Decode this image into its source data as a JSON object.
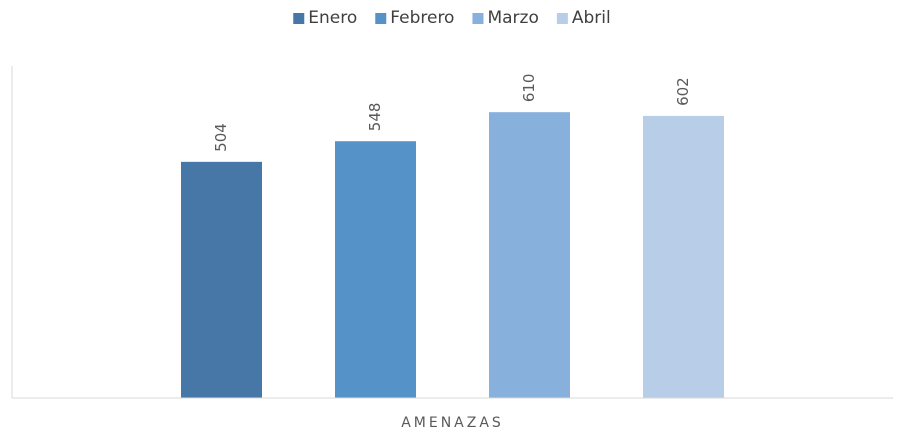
{
  "chart_data": {
    "type": "bar",
    "categories": [
      "AMENAZAS"
    ],
    "series": [
      {
        "name": "Enero",
        "color": "#4677a7",
        "values": [
          504
        ]
      },
      {
        "name": "Febrero",
        "color": "#5592c8",
        "values": [
          548
        ]
      },
      {
        "name": "Marzo",
        "color": "#87b0dc",
        "values": [
          610
        ]
      },
      {
        "name": "Abril",
        "color": "#b8cde8",
        "values": [
          602
        ]
      }
    ],
    "ylim": [
      0,
      700
    ],
    "legend": "top"
  }
}
